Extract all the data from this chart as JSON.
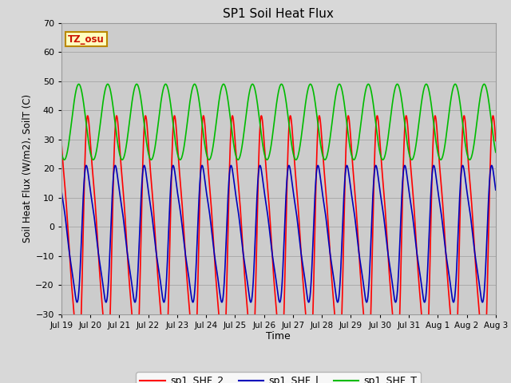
{
  "title": "SP1 Soil Heat Flux",
  "xlabel": "Time",
  "ylabel": "Soil Heat Flux (W/m2), SoilT (C)",
  "ylim": [
    -30,
    70
  ],
  "yticks": [
    -30,
    -20,
    -10,
    0,
    10,
    20,
    30,
    40,
    50,
    60,
    70
  ],
  "xtick_labels": [
    "Jul 19",
    "Jul 20",
    "Jul 21",
    "Jul 22",
    "Jul 23",
    "Jul 24",
    "Jul 25",
    "Jul 26",
    "Jul 27",
    "Jul 28",
    "Jul 29",
    "Jul 30",
    "Jul 31",
    "Aug 1",
    "Aug 2",
    "Aug 3"
  ],
  "legend_labels": [
    "sp1_SHF_2",
    "sp1_SHF_l",
    "sp1_SHF_T"
  ],
  "legend_colors": [
    "#ff0000",
    "#0000bb",
    "#00bb00"
  ],
  "tz_label": "TZ_osu",
  "bg_color": "#d8d8d8",
  "plot_bg_color": "#cccccc",
  "grid_color": "#bbbbbb",
  "line_width": 1.2,
  "n_days": 15,
  "samples_per_day": 288,
  "shf2_amp": 42,
  "shf2_mean": 20,
  "shf2_sharpness": 3.5,
  "shf1_amp": 23,
  "shf1_mean": 12,
  "shf1_sharpness": 3.0,
  "shfT_amp": 12,
  "shfT_mean": 35,
  "shfT_sharpness": 1.0
}
